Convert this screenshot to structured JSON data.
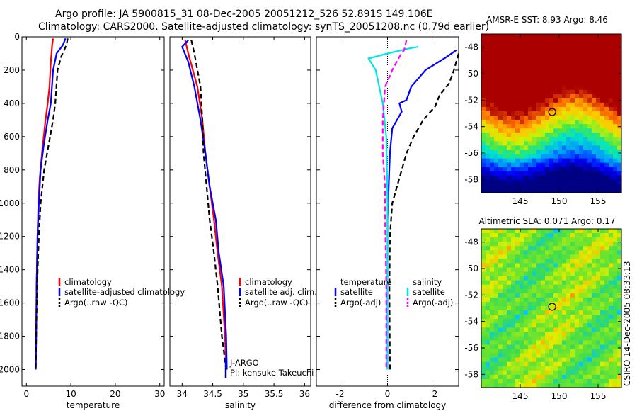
{
  "title_line1": "Argo profile: JA 5900815_31 08-Dec-2005 20051212_526 52.891S 149.106E",
  "title_line2": "Climatology: CARS2000. Satellite-adjusted climatology: synTS_20051208.nc (0.79d earlier)",
  "vertical_label": "CSIRO 14-Dec-2005 08:33:13",
  "colors": {
    "climatology": "#ff0000",
    "satellite": "#0000ff",
    "argo": "#000000",
    "sat_sal": "#00e5e5",
    "argo_sal": "#ff00ff"
  },
  "chart_data": [
    {
      "type": "line",
      "id": "temperature",
      "xlabel": "temperature",
      "xlim": [
        -1,
        31
      ],
      "ylim": [
        2100,
        0
      ],
      "xticks": [
        0,
        10,
        20,
        30
      ],
      "yticks": [
        0,
        200,
        400,
        600,
        800,
        1000,
        1200,
        1400,
        1600,
        1800,
        2000
      ],
      "legend": [
        "climatology",
        "satellite-adjusted climatology",
        "Argo(..raw -QC)"
      ],
      "series": [
        {
          "name": "climatology",
          "color": "#ff0000",
          "style": "solid",
          "points": [
            [
              6.0,
              10
            ],
            [
              5.8,
              50
            ],
            [
              5.5,
              150
            ],
            [
              5.2,
              300
            ],
            [
              4.8,
              400
            ],
            [
              4.3,
              500
            ],
            [
              3.5,
              700
            ],
            [
              3.0,
              850
            ],
            [
              2.7,
              1000
            ],
            [
              2.5,
              1200
            ],
            [
              2.3,
              1500
            ],
            [
              2.2,
              1800
            ],
            [
              2.1,
              2000
            ]
          ]
        },
        {
          "name": "satellite-adjusted climatology",
          "color": "#0000ff",
          "style": "solid",
          "points": [
            [
              8.8,
              10
            ],
            [
              8.2,
              50
            ],
            [
              6.8,
              100
            ],
            [
              6.0,
              200
            ],
            [
              5.5,
              400
            ],
            [
              4.8,
              500
            ],
            [
              3.9,
              650
            ],
            [
              3.2,
              800
            ],
            [
              2.8,
              1000
            ],
            [
              2.5,
              1200
            ],
            [
              2.3,
              1500
            ],
            [
              2.2,
              1800
            ],
            [
              2.1,
              2000
            ]
          ]
        },
        {
          "name": "Argo(..raw -QC)",
          "color": "#000000",
          "style": "dashed",
          "points": [
            [
              9.3,
              10
            ],
            [
              9.0,
              50
            ],
            [
              7.8,
              120
            ],
            [
              7.0,
              200
            ],
            [
              6.5,
              400
            ],
            [
              6.0,
              500
            ],
            [
              5.0,
              650
            ],
            [
              4.0,
              800
            ],
            [
              3.2,
              1000
            ],
            [
              2.8,
              1200
            ],
            [
              2.4,
              1500
            ],
            [
              2.2,
              1800
            ],
            [
              2.1,
              2000
            ]
          ]
        }
      ]
    },
    {
      "type": "line",
      "id": "salinity",
      "xlabel": "salinity",
      "xlim": [
        33.8,
        36.1
      ],
      "ylim": [
        2100,
        0
      ],
      "xticks": [
        34,
        34.5,
        35,
        35.5,
        36
      ],
      "legend": [
        "climatology",
        "satellite adj. clim.",
        "Argo(..raw -QC)"
      ],
      "annotations": [
        "J-ARGO",
        "PI: kensuke Takeuchi"
      ],
      "series": [
        {
          "name": "climatology",
          "color": "#ff0000",
          "style": "solid",
          "points": [
            [
              34.05,
              20
            ],
            [
              34.1,
              100
            ],
            [
              34.25,
              300
            ],
            [
              34.33,
              500
            ],
            [
              34.38,
              700
            ],
            [
              34.45,
              900
            ],
            [
              34.52,
              1100
            ],
            [
              34.58,
              1300
            ],
            [
              34.65,
              1500
            ],
            [
              34.7,
              1800
            ],
            [
              34.72,
              2000
            ]
          ]
        },
        {
          "name": "satellite adj. clim.",
          "color": "#0000ff",
          "style": "solid",
          "points": [
            [
              34.1,
              20
            ],
            [
              34.0,
              60
            ],
            [
              34.1,
              150
            ],
            [
              34.2,
              300
            ],
            [
              34.3,
              500
            ],
            [
              34.38,
              700
            ],
            [
              34.45,
              900
            ],
            [
              34.55,
              1100
            ],
            [
              34.6,
              1300
            ],
            [
              34.68,
              1500
            ],
            [
              34.72,
              1800
            ],
            [
              34.73,
              2000
            ]
          ]
        },
        {
          "name": "Argo(..raw -QC)",
          "color": "#000000",
          "style": "dashed",
          "points": [
            [
              34.15,
              20
            ],
            [
              34.2,
              100
            ],
            [
              34.3,
              300
            ],
            [
              34.33,
              500
            ],
            [
              34.35,
              700
            ],
            [
              34.4,
              900
            ],
            [
              34.45,
              1100
            ],
            [
              34.52,
              1300
            ],
            [
              34.58,
              1500
            ],
            [
              34.65,
              1800
            ],
            [
              34.72,
              2000
            ]
          ]
        }
      ]
    },
    {
      "type": "line",
      "id": "difference",
      "xlabel": "difference from climatology",
      "xlim": [
        -3,
        3
      ],
      "ylim": [
        2100,
        0
      ],
      "xticks": [
        -2,
        0,
        2
      ],
      "legend_temperature_header": "temperature",
      "legend_salinity_header": "salinity",
      "legend": [
        "satellite",
        "Argo(-adj)",
        "satellite",
        "Argo(-adj)"
      ],
      "series": [
        {
          "name": "temperature satellite",
          "color": "#0000ff",
          "style": "solid",
          "points": [
            [
              2.9,
              80
            ],
            [
              2.5,
              120
            ],
            [
              1.6,
              200
            ],
            [
              1.0,
              300
            ],
            [
              0.8,
              380
            ],
            [
              0.5,
              400
            ],
            [
              0.6,
              450
            ],
            [
              0.2,
              550
            ],
            [
              0.1,
              700
            ],
            [
              0.05,
              900
            ],
            [
              0.0,
              1100
            ],
            [
              0.0,
              2000
            ]
          ]
        },
        {
          "name": "temperature Argo(-adj)",
          "color": "#000000",
          "style": "dashed",
          "points": [
            [
              3.0,
              100
            ],
            [
              2.8,
              200
            ],
            [
              2.6,
              280
            ],
            [
              2.2,
              350
            ],
            [
              2.0,
              420
            ],
            [
              1.5,
              500
            ],
            [
              1.1,
              600
            ],
            [
              0.8,
              700
            ],
            [
              0.6,
              800
            ],
            [
              0.4,
              900
            ],
            [
              0.2,
              1000
            ],
            [
              0.1,
              1200
            ],
            [
              0.08,
              1500
            ],
            [
              0.1,
              2000
            ]
          ]
        },
        {
          "name": "salinity satellite",
          "color": "#00e5e5",
          "style": "solid",
          "points": [
            [
              1.3,
              60
            ],
            [
              0.9,
              70
            ],
            [
              0.6,
              80
            ],
            [
              0.0,
              100
            ],
            [
              -0.8,
              130
            ],
            [
              -0.5,
              200
            ],
            [
              -0.2,
              400
            ],
            [
              -0.05,
              600
            ],
            [
              0.0,
              1000
            ],
            [
              0.0,
              2000
            ]
          ]
        },
        {
          "name": "salinity Argo(-adj)",
          "color": "#ff00ff",
          "style": "dashed",
          "points": [
            [
              0.8,
              20
            ],
            [
              0.7,
              80
            ],
            [
              0.5,
              120
            ],
            [
              0.2,
              200
            ],
            [
              -0.1,
              300
            ],
            [
              -0.2,
              500
            ],
            [
              -0.2,
              700
            ],
            [
              -0.1,
              900
            ],
            [
              -0.1,
              1100
            ],
            [
              -0.05,
              1500
            ],
            [
              -0.05,
              2000
            ]
          ]
        }
      ]
    },
    {
      "type": "heatmap",
      "id": "sst_map",
      "title": "AMSR-E SST: 8.93 Argo: 8.46",
      "xlim": [
        140,
        158
      ],
      "ylim": [
        -59,
        -47
      ],
      "xticks": [
        145,
        150,
        155
      ],
      "yticks": [
        -48,
        -50,
        -52,
        -54,
        -56,
        -58
      ],
      "marker": [
        149.106,
        -52.891
      ]
    },
    {
      "type": "heatmap",
      "id": "sla_map",
      "title": "Altimetric SLA: 0.071 Argo: 0.17",
      "xlim": [
        140,
        158
      ],
      "ylim": [
        -59,
        -47
      ],
      "xticks": [
        145,
        150,
        155
      ],
      "yticks": [
        -48,
        -50,
        -52,
        -54,
        -56,
        -58
      ],
      "marker": [
        149.106,
        -52.891
      ]
    }
  ]
}
